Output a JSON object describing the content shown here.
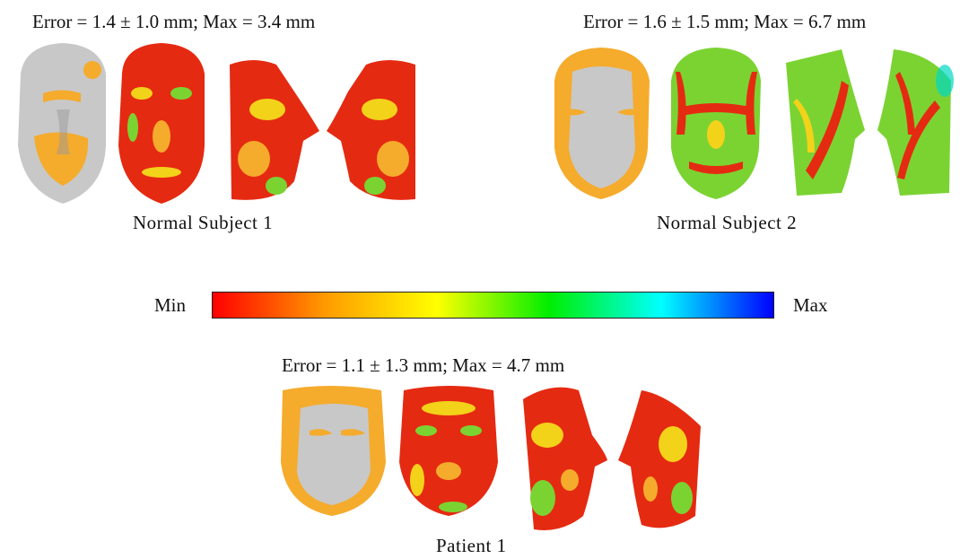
{
  "panels": [
    {
      "caption": "Error = 1.4 ± 1.0 mm; Max = 3.4 mm",
      "name": "Normal Subject 1"
    },
    {
      "caption": "Error = 1.6 ± 1.5 mm; Max = 6.7 mm",
      "name": "Normal Subject 2"
    },
    {
      "caption": "Error = 1.1 ± 1.3 mm; Max = 4.7 mm",
      "name": "Patient 1"
    }
  ],
  "colorbar": {
    "min_label": "Min",
    "max_label": "Max",
    "colors": [
      "#ff0000",
      "#ff9a00",
      "#ffff00",
      "#00ee00",
      "#00ffff",
      "#0000ff"
    ]
  },
  "face_colors": {
    "gray": "#c8c8c8",
    "orange": "#f5ab2c",
    "red": "#e52a12",
    "yellow": "#f3d21a",
    "green": "#7bd332"
  }
}
